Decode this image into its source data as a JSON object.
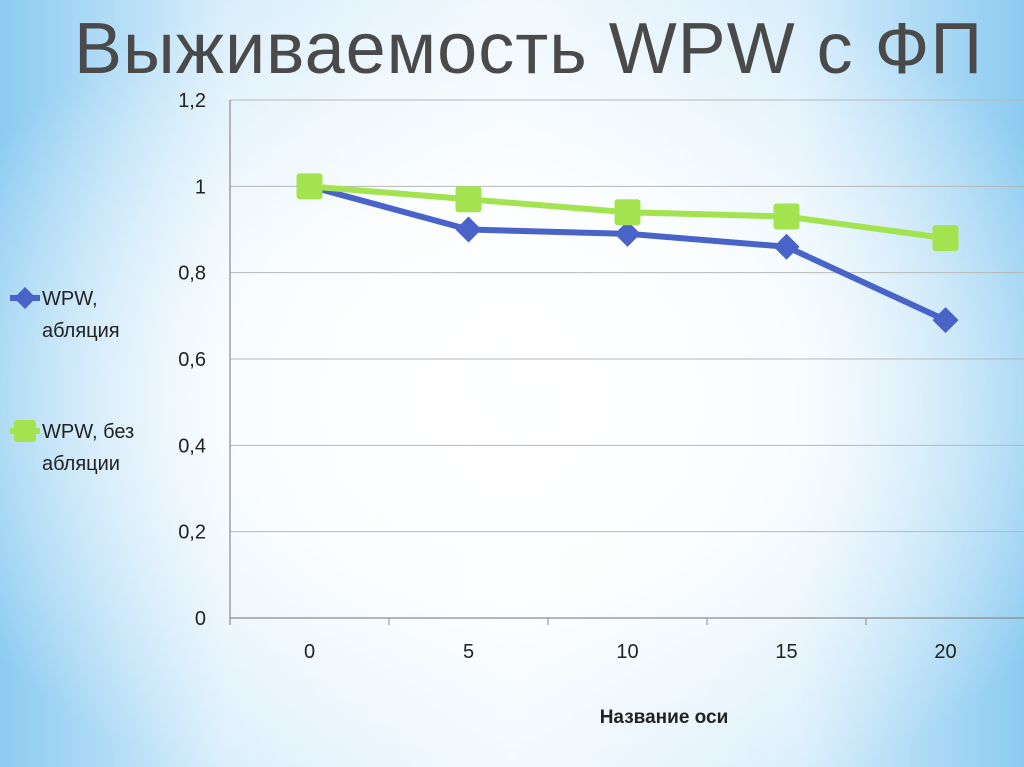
{
  "page": {
    "title": "Выживаемость WPW с ФП"
  },
  "chart_data": {
    "type": "line",
    "title": "Выживаемость WPW с ФП",
    "xlabel": "Название оси",
    "ylabel": "",
    "categories": [
      "0",
      "5",
      "10",
      "15",
      "20"
    ],
    "yticks": [
      "0",
      "0,2",
      "0,4",
      "0,6",
      "0,8",
      "1",
      "1,2"
    ],
    "ylim": [
      0,
      1.2
    ],
    "grid": true,
    "legend_position": "left",
    "series": [
      {
        "name": "WPW, абляция",
        "legend_lines": [
          "WPW,",
          "абляция"
        ],
        "marker": "diamond",
        "color": "#4a63c9",
        "values": [
          1.0,
          0.9,
          0.89,
          0.86,
          0.69
        ]
      },
      {
        "name": "WPW, без абляции",
        "legend_lines": [
          "WPW, без",
          "абляции"
        ],
        "marker": "square",
        "color": "#a3e34f",
        "values": [
          1.0,
          0.97,
          0.94,
          0.93,
          0.88
        ]
      }
    ]
  }
}
